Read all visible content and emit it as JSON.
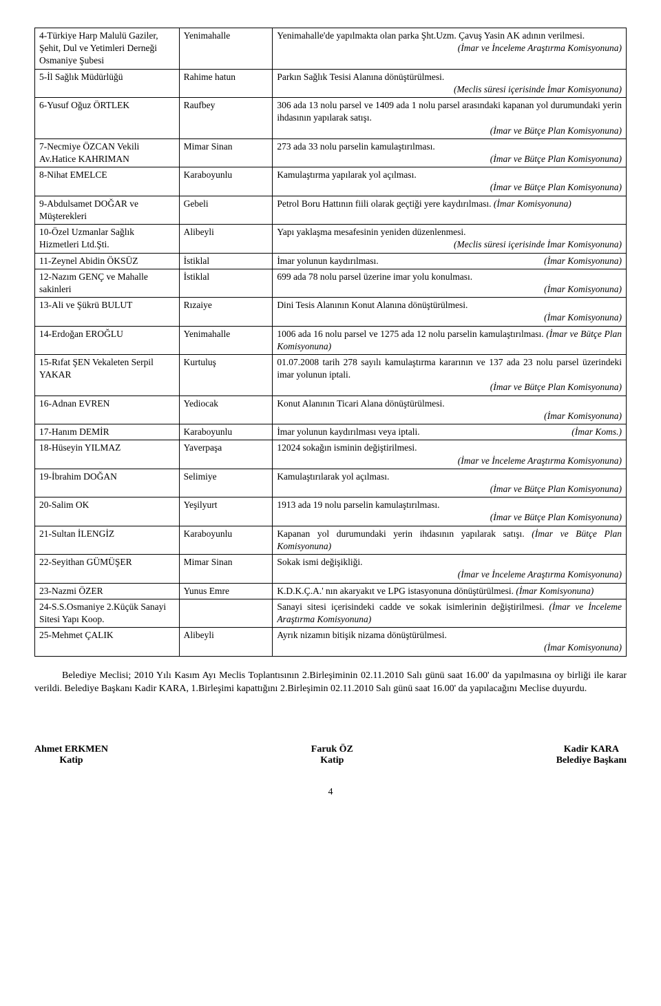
{
  "rows": [
    {
      "c1": "4-Türkiye Harp Malulü Gaziler, Şehit, Dul ve Yetimleri Derneği Osmaniye Şubesi",
      "c2": "Yenimahalle",
      "c3": "Yenimahalle'de yapılmakta olan parka Şht.Uzm. Çavuş Yasin AK adının verilmesi.",
      "note": "(İmar ve İnceleme Araştırma Komisyonuna)"
    },
    {
      "c1": "5-İl Sağlık Müdürlüğü",
      "c2": "Rahime hatun",
      "c3": "Parkın Sağlık Tesisi Alanına dönüştürülmesi.",
      "note": "(Meclis süresi içerisinde İmar Komisyonuna)"
    },
    {
      "c1": "6-Yusuf Oğuz ÖRTLEK",
      "c2": "Raufbey",
      "c3": "306 ada 13 nolu parsel ve 1409 ada 1 nolu parsel arasındaki kapanan yol durumundaki yerin ihdasının yapılarak satışı.",
      "note": "(İmar ve Bütçe Plan Komisyonuna)"
    },
    {
      "c1": "7-Necmiye ÖZCAN Vekili Av.Hatice KAHRIMAN",
      "c2": "Mimar Sinan",
      "c3": "273 ada 33 nolu parselin kamulaştırılması.",
      "note": "(İmar ve Bütçe Plan Komisyonuna)"
    },
    {
      "c1": "8-Nihat EMELCE",
      "c2": "Karaboyunlu",
      "c3": "Kamulaştırma yapılarak yol açılması.",
      "note": "(İmar ve Bütçe Plan Komisyonuna)"
    },
    {
      "c1": "9-Abdulsamet DOĞAR ve Müşterekleri",
      "c2": "Gebeli",
      "c3": "Petrol Boru Hattının fiili olarak geçtiği yere kaydırılması.",
      "inline_note": "(İmar Komisyonuna)",
      "justify": true
    },
    {
      "c1": "10-Özel Uzmanlar Sağlık Hizmetleri Ltd.Şti.",
      "c2": "Alibeyli",
      "c3": "Yapı yaklaşma mesafesinin yeniden düzenlenmesi.",
      "note": "(Meclis süresi içerisinde İmar Komisyonuna)"
    },
    {
      "c1": "11-Zeynel Abidin ÖKSÜZ",
      "c2": "İstiklal",
      "c3": "İmar yolunun kaydırılması.",
      "inline_note": "(İmar Komisyonuna)"
    },
    {
      "c1": "12-Nazım GENÇ ve Mahalle sakinleri",
      "c2": "İstiklal",
      "c3": "699 ada 78 nolu parsel üzerine imar yolu konulması.",
      "note": "(İmar Komisyonuna)"
    },
    {
      "c1": "13-Ali ve Şükrü BULUT",
      "c2": "Rızaiye",
      "c3": "Dini Tesis Alanının Konut Alanına dönüştürülmesi.",
      "note": "(İmar Komisyonuna)"
    },
    {
      "c1": "14-Erdoğan EROĞLU",
      "c2": "Yenimahalle",
      "c3": "1006 ada 16 nolu parsel ve 1275 ada 12 nolu parselin kamulaştırılması.",
      "inline_note": "(İmar ve Bütçe Plan Komisyonuna)",
      "justify": true
    },
    {
      "c1": "15-Rıfat ŞEN Vekaleten Serpil YAKAR",
      "c2": "Kurtuluş",
      "c3": "01.07.2008 tarih 278 sayılı kamulaştırma kararının ve 137 ada 23 nolu parsel üzerindeki imar yolunun iptali.",
      "note": "(İmar ve Bütçe Plan Komisyonuna)",
      "justify": true
    },
    {
      "c1": "16-Adnan EVREN",
      "c2": "Yediocak",
      "c3": "Konut Alanının Ticari Alana dönüştürülmesi.",
      "note": "(İmar Komisyonuna)"
    },
    {
      "c1": "17-Hanım DEMİR",
      "c2": "Karaboyunlu",
      "c3": "İmar yolunun kaydırılması veya iptali.",
      "inline_note": "(İmar Koms.)"
    },
    {
      "c1": "18-Hüseyin YILMAZ",
      "c2": "Yaverpaşa",
      "c3": "12024 sokağın isminin değiştirilmesi.",
      "note": "(İmar ve İnceleme Araştırma Komisyonuna)"
    },
    {
      "c1": "19-İbrahim DOĞAN",
      "c2": "Selimiye",
      "c3": "Kamulaştırılarak yol açılması.",
      "note": "(İmar ve Bütçe Plan Komisyonuna)"
    },
    {
      "c1": "20-Salim OK",
      "c2": "Yeşilyurt",
      "c3": "1913 ada 19 nolu parselin kamulaştırılması.",
      "note": "(İmar ve Bütçe Plan Komisyonuna)"
    },
    {
      "c1": "21-Sultan İLENGİZ",
      "c2": "Karaboyunlu",
      "c3": "Kapanan yol durumundaki yerin ihdasının yapılarak satışı.",
      "inline_note": "(İmar ve Bütçe Plan Komisyonuna)",
      "justify": true
    },
    {
      "c1": "22-Seyithan GÜMÜŞER",
      "c2": "Mimar Sinan",
      "c3": "Sokak ismi değişikliği.",
      "note": "(İmar ve İnceleme Araştırma Komisyonuna)"
    },
    {
      "c1": "23-Nazmi ÖZER",
      "c2": "Yunus Emre",
      "c3": "K.D.K.Ç.A.' nın akaryakıt ve LPG istasyonuna dönüştürülmesi.",
      "inline_note": "(İmar Komisyonuna)",
      "justify": true
    },
    {
      "c1": "24-S.S.Osmaniye 2.Küçük Sanayi Sitesi Yapı Koop.",
      "c2": "",
      "c3": "Sanayi sitesi içerisindeki cadde ve sokak isimlerinin değiştirilmesi.",
      "inline_note": "(İmar ve İnceleme Araştırma Komisyonuna)",
      "justify": true
    },
    {
      "c1": "25-Mehmet ÇALIK",
      "c2": "Alibeyli",
      "c3": "Ayrık nizamın bitişik nizama dönüştürülmesi.",
      "note": "(İmar Komisyonuna)"
    }
  ],
  "paragraph": "Belediye Meclisi; 2010 Yılı Kasım Ayı Meclis Toplantısının 2.Birleşiminin 02.11.2010 Salı günü saat 16.00' da yapılmasına oy birliği ile karar verildi. Belediye Başkanı Kadir KARA, 1.Birleşimi kapattığını 2.Birleşimin 02.11.2010 Salı günü saat 16.00' da yapılacağını Meclise duyurdu.",
  "signatures": [
    {
      "name": "Ahmet ERKMEN",
      "title": "Katip"
    },
    {
      "name": "Faruk ÖZ",
      "title": "Katip"
    },
    {
      "name": "Kadir KARA",
      "title": "Belediye Başkanı"
    }
  ],
  "page_number": "4"
}
